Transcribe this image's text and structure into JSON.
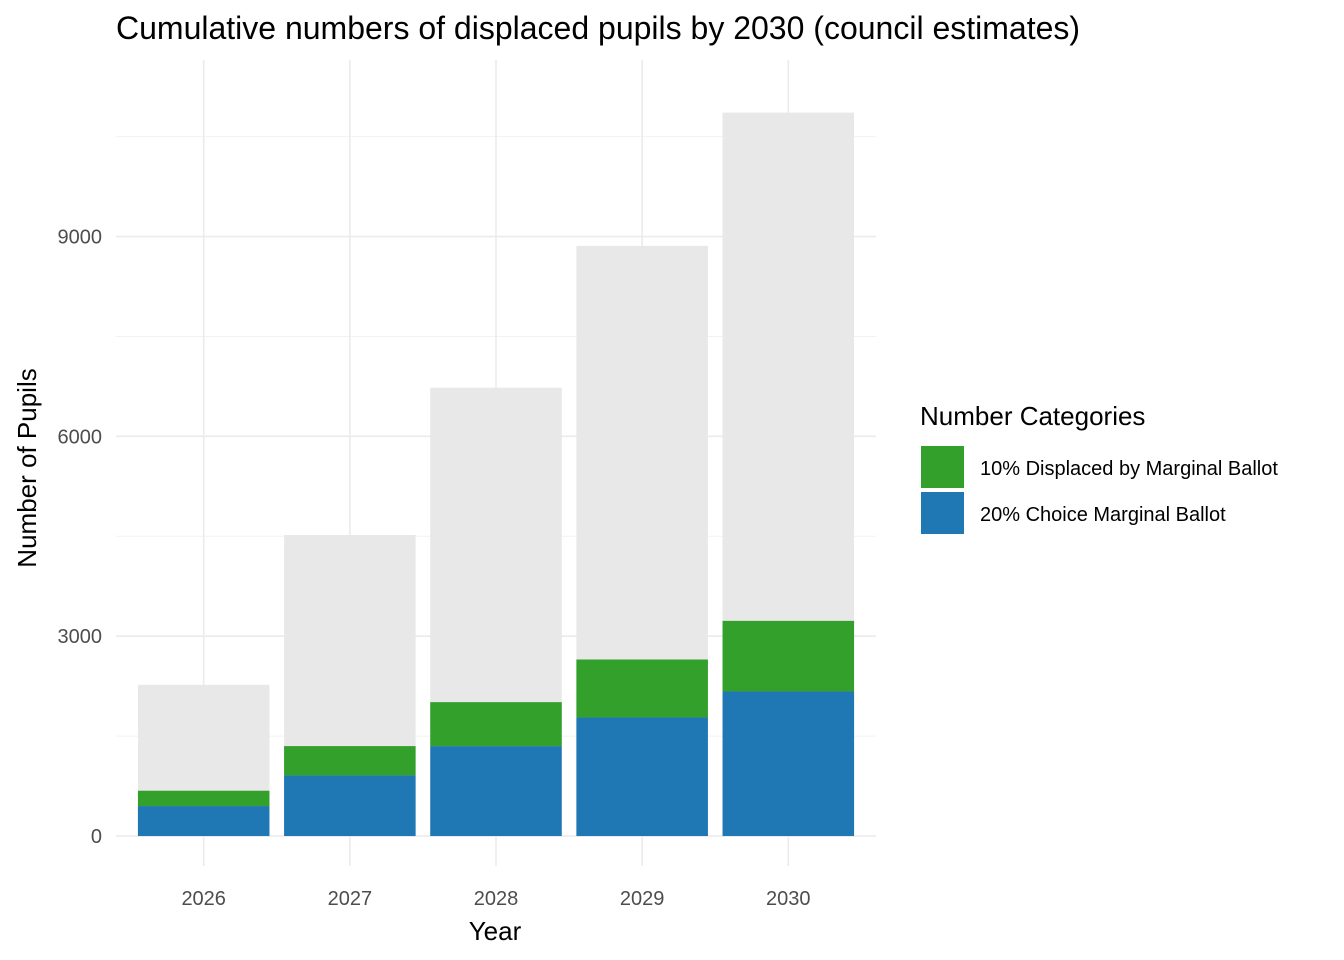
{
  "chart_data": {
    "type": "bar",
    "title": "Cumulative numbers of displaced pupils by 2030 (council estimates)",
    "xlabel": "Year",
    "ylabel": "Number of Pupils",
    "categories": [
      "2026",
      "2027",
      "2028",
      "2029",
      "2030"
    ],
    "ylim": [
      -450,
      11650
    ],
    "yticks": [
      0,
      3000,
      6000,
      9000
    ],
    "grid": true,
    "stacked": true,
    "background_totals": [
      2270,
      4520,
      6730,
      8860,
      10860
    ],
    "background_color": "#e8e8e8",
    "series": [
      {
        "name": "20% Choice Marginal Ballot",
        "values": [
          450,
          910,
          1350,
          1780,
          2170
        ],
        "color": "#1f78b4"
      },
      {
        "name": "10% Displaced by Marginal Ballot",
        "values": [
          230,
          440,
          660,
          870,
          1060
        ],
        "color": "#33a02c"
      }
    ],
    "legend": {
      "title": "Number Categories",
      "position": "right",
      "entries": [
        {
          "label": "10% Displaced by Marginal Ballot",
          "color": "#33a02c"
        },
        {
          "label": "20% Choice Marginal Ballot",
          "color": "#1f78b4"
        }
      ]
    }
  }
}
